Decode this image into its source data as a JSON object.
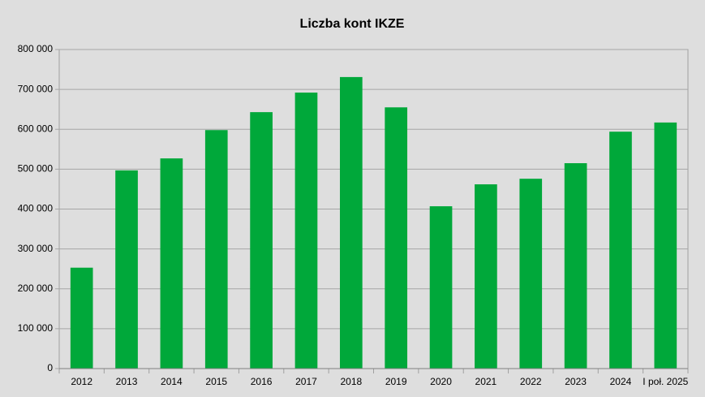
{
  "chart_data": {
    "type": "bar",
    "title": "Liczba kont IKZE",
    "categories": [
      "2012",
      "2013",
      "2014",
      "2015",
      "2016",
      "2017",
      "2018",
      "2019",
      "2020",
      "2021",
      "2022",
      "2023",
      "2024",
      "I poł. 2025"
    ],
    "values": [
      253000,
      497000,
      527000,
      598000,
      643000,
      692000,
      731000,
      655000,
      407000,
      462000,
      476000,
      515000,
      594000,
      617000
    ],
    "color": "#00a83a",
    "ylim": [
      0,
      800000
    ],
    "yticks": [
      0,
      {
        "value": 100000,
        "label": "100 000"
      },
      {
        "value": 200000,
        "label": "200 000"
      },
      {
        "value": 300000,
        "label": "300 000"
      },
      {
        "value": 400000,
        "label": "400 000"
      },
      {
        "value": 500000,
        "label": "500 000"
      },
      {
        "value": 600000,
        "label": "600 000"
      },
      {
        "value": 700000,
        "label": "700 000"
      },
      {
        "value": 800000,
        "label": "800 000"
      }
    ],
    "grid": true
  }
}
